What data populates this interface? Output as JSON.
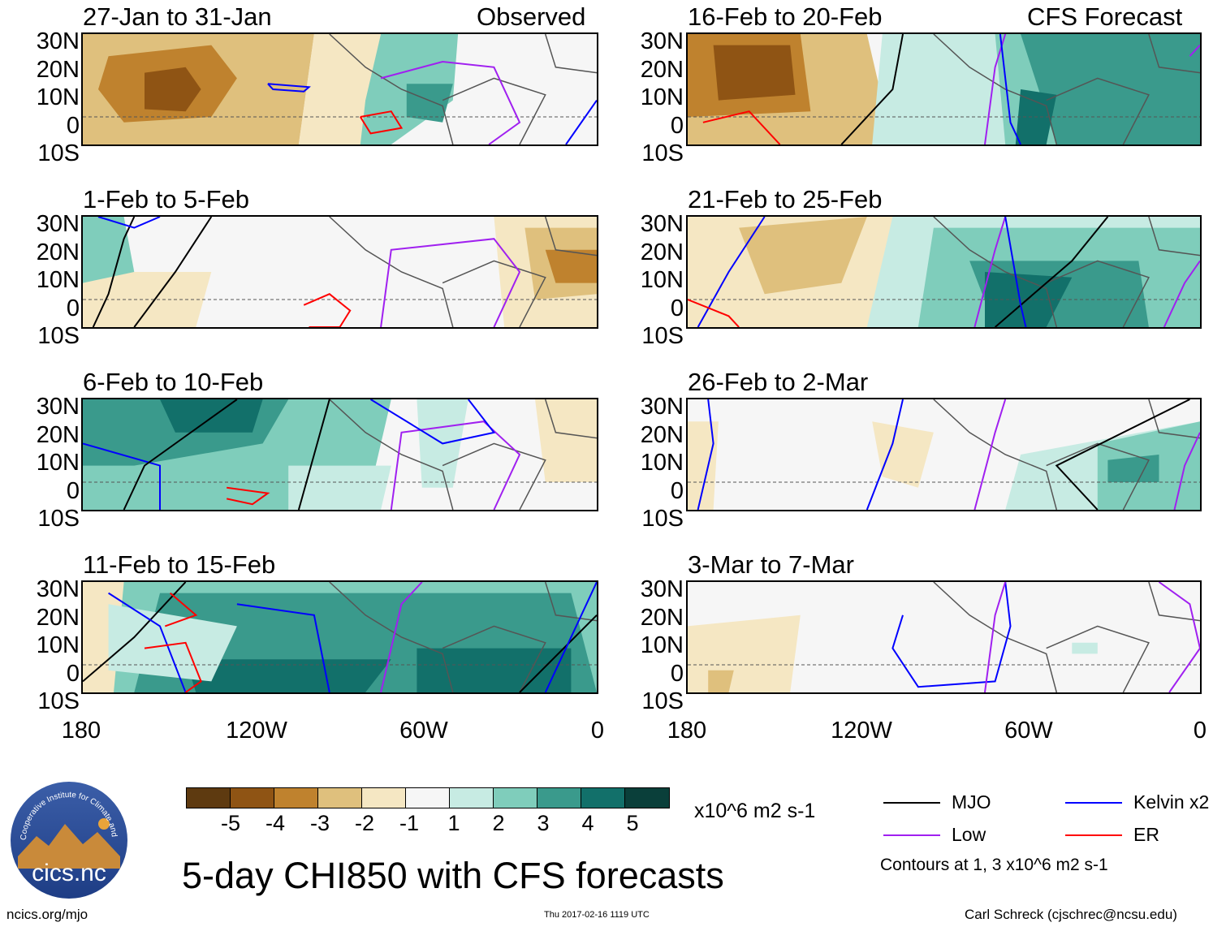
{
  "chart_data": {
    "type": "heatmap",
    "title": "5-day CHI850 with CFS forecasts",
    "units": "x10^6 m2 s-1",
    "lat_labels": [
      "30N",
      "20N",
      "10N",
      "0",
      "10S"
    ],
    "lon_labels": [
      "180",
      "120W",
      "60W",
      "0"
    ],
    "colorbar": {
      "ticks": [
        "-5",
        "-4",
        "-3",
        "-2",
        "-1",
        "1",
        "2",
        "3",
        "4",
        "5"
      ],
      "colors": [
        "#5e3a10",
        "#8f5414",
        "#bf822e",
        "#dfc07d",
        "#f5e7c3",
        "#f6f6f6",
        "#c7ebe3",
        "#7fcdbb",
        "#3a9a8c",
        "#12706a",
        "#0a3f3a"
      ]
    },
    "panels": [
      {
        "title": "27-Jan to 31-Jan",
        "tag": "Observed"
      },
      {
        "title": "1-Feb to 5-Feb",
        "tag": ""
      },
      {
        "title": "6-Feb to 10-Feb",
        "tag": ""
      },
      {
        "title": "11-Feb to 15-Feb",
        "tag": ""
      },
      {
        "title": "16-Feb to 20-Feb",
        "tag": "CFS Forecast"
      },
      {
        "title": "21-Feb to 25-Feb",
        "tag": ""
      },
      {
        "title": "26-Feb to 2-Mar",
        "tag": ""
      },
      {
        "title": "3-Mar to 7-Mar",
        "tag": ""
      }
    ],
    "legend": [
      {
        "name": "MJO",
        "color": "#000000"
      },
      {
        "name": "Kelvin x2",
        "color": "#0000ff"
      },
      {
        "name": "Low",
        "color": "#a020f0"
      },
      {
        "name": "ER",
        "color": "#ff0000"
      }
    ],
    "contours_note": "Contours at 1, 3 x10^6 m2 s-1"
  },
  "footer": {
    "left": "ncics.org/mjo",
    "center": "Thu 2017-02-16 1119 UTC",
    "right": "Carl Schreck (cjschrec@ncsu.edu)"
  },
  "logo": {
    "text": "cics.nc",
    "ring": "Cooperative Institute for Climate and Satellites"
  }
}
